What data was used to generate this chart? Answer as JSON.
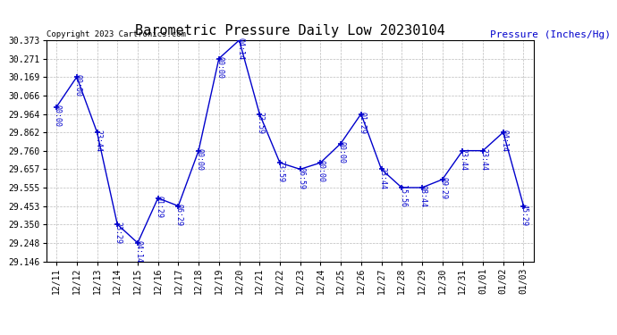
{
  "title": "Barometric Pressure Daily Low 20230104",
  "ylabel": "Pressure (Inches/Hg)",
  "copyright": "Copyright 2023 Cartronics.com",
  "x_labels": [
    "12/11",
    "12/12",
    "12/13",
    "12/14",
    "12/15",
    "12/16",
    "12/17",
    "12/18",
    "12/19",
    "12/20",
    "12/21",
    "12/22",
    "12/23",
    "12/24",
    "12/25",
    "12/26",
    "12/27",
    "12/28",
    "12/29",
    "12/30",
    "12/31",
    "01/01",
    "01/02",
    "01/03"
  ],
  "y_values": [
    30.002,
    30.169,
    29.862,
    29.351,
    29.248,
    29.497,
    29.453,
    29.76,
    30.271,
    30.373,
    29.964,
    29.693,
    29.657,
    29.693,
    29.8,
    29.964,
    29.657,
    29.555,
    29.555,
    29.6,
    29.76,
    29.76,
    29.862,
    29.453
  ],
  "time_labels": [
    "00:00",
    "00:00",
    "23:44",
    "23:29",
    "04:14",
    "01:29",
    "06:29",
    "00:00",
    "00:00",
    "04:14",
    "23:59",
    "23:59",
    "06:59",
    "00:00",
    "00:00",
    "01:29",
    "23:44",
    "15:56",
    "08:44",
    "09:29",
    "23:44",
    "23:44",
    "04:14",
    "45:29"
  ],
  "ylim_min": 29.146,
  "ylim_max": 30.373,
  "yticks": [
    29.146,
    29.248,
    29.35,
    29.453,
    29.555,
    29.657,
    29.76,
    29.862,
    29.964,
    30.066,
    30.169,
    30.271,
    30.373
  ],
  "line_color": "#0000cc",
  "marker_color": "#0000cc",
  "grid_color": "#bbbbbb",
  "bg_color": "#ffffff",
  "title_color": "#000000",
  "ylabel_color": "#0000cc",
  "copyright_color": "#000000",
  "tick_label_color": "#000000",
  "title_fontsize": 11,
  "tick_fontsize": 7,
  "annot_fontsize": 6
}
